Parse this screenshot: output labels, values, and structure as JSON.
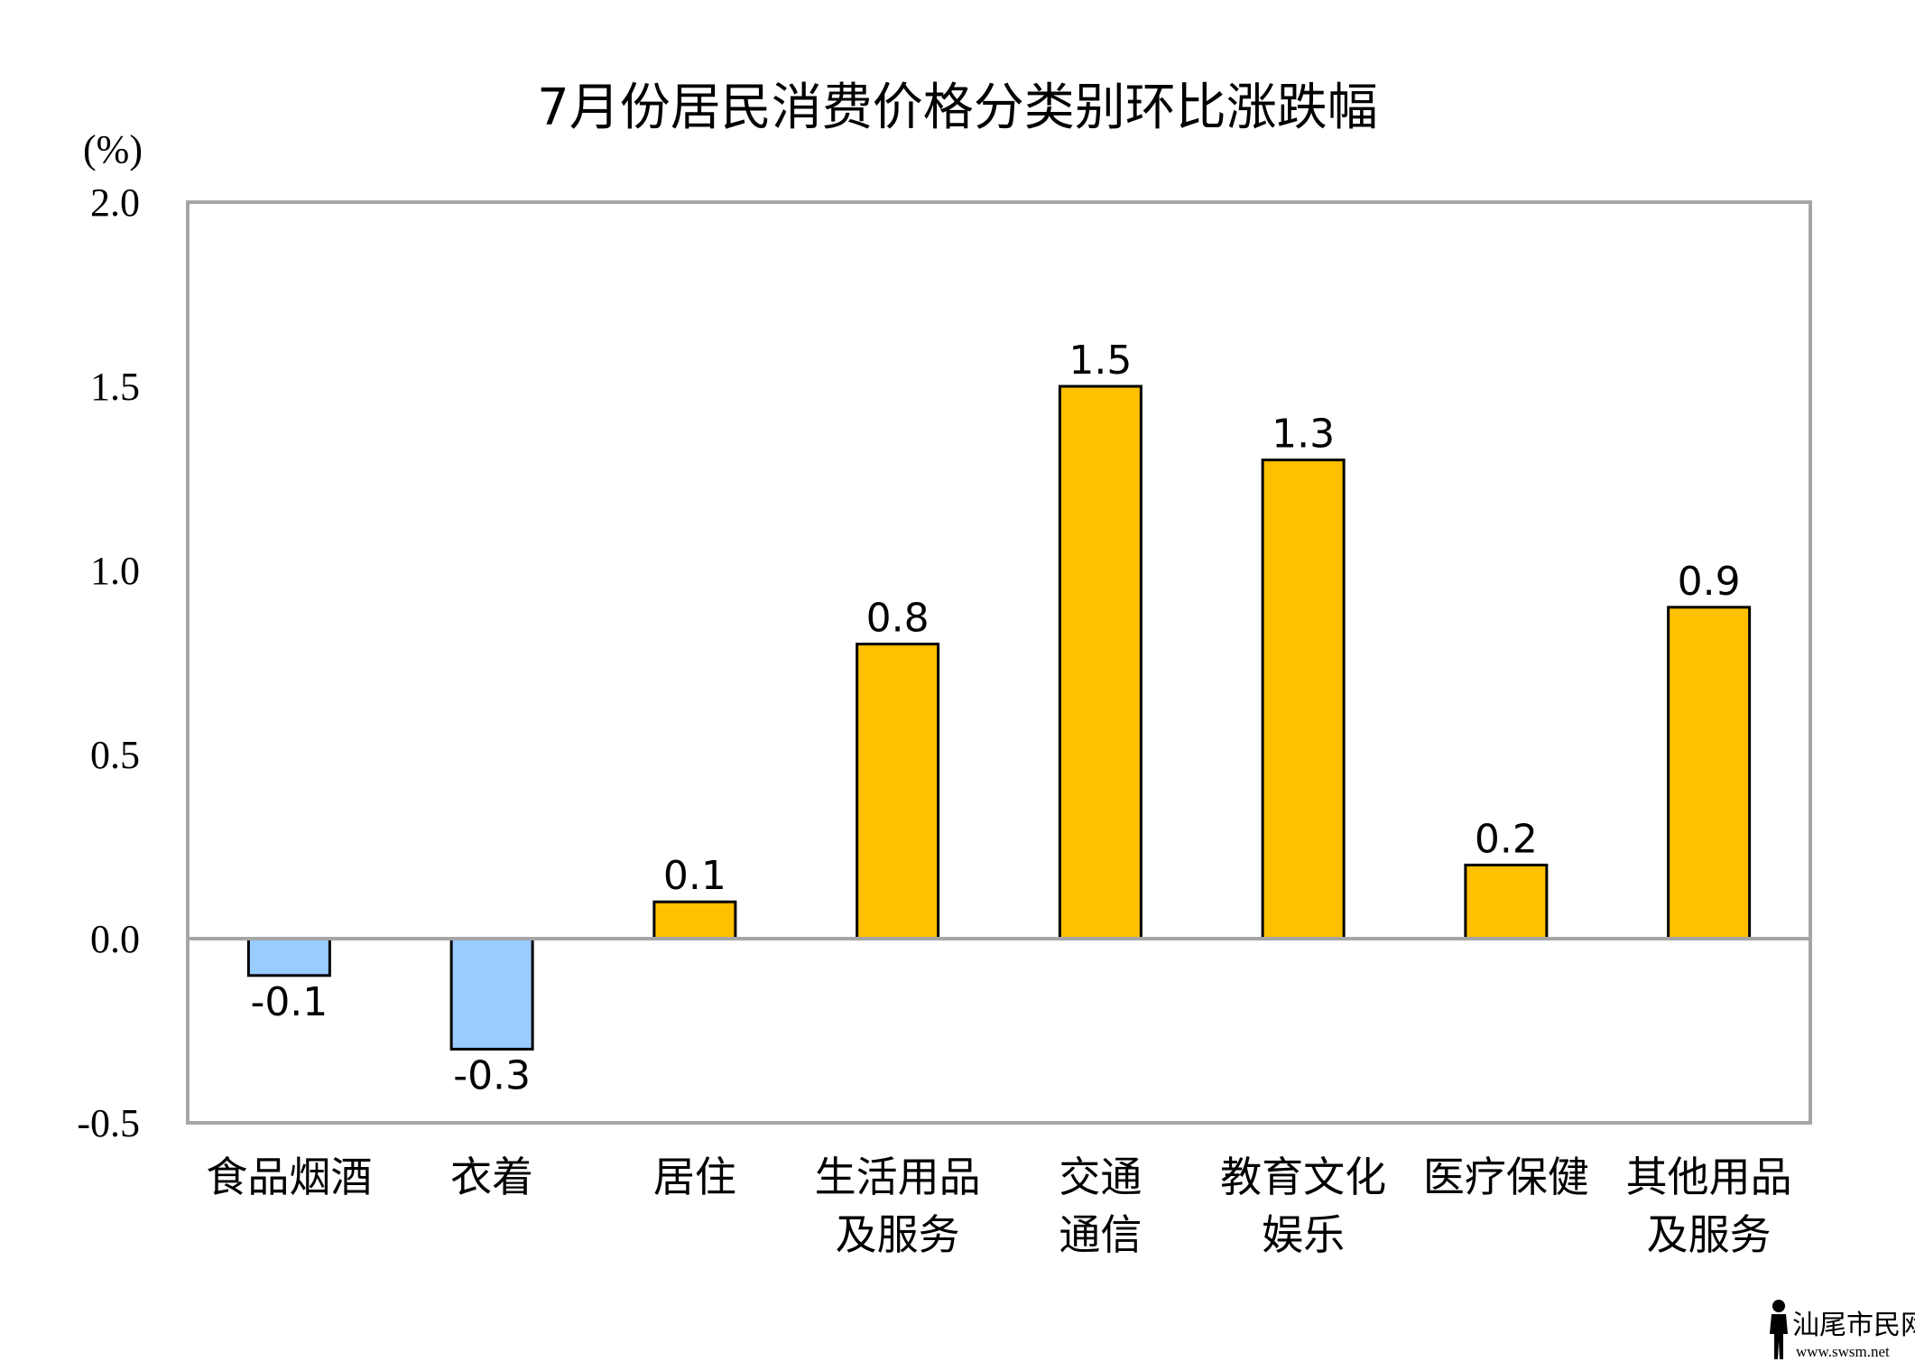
{
  "chart_data": {
    "type": "bar",
    "title": "7月份居民消费价格分类别环比涨跌幅",
    "ylabel": "(%)",
    "xlabel": "",
    "ylim": [
      -0.5,
      2.0
    ],
    "yticks": [
      "2.0",
      "1.5",
      "1.0",
      "0.5",
      "0.0",
      "-0.5"
    ],
    "ytick_values": [
      2.0,
      1.5,
      1.0,
      0.5,
      0.0,
      -0.5
    ],
    "categories": [
      [
        "食品烟酒"
      ],
      [
        "衣着"
      ],
      [
        "居住"
      ],
      [
        "生活用品",
        "及服务"
      ],
      [
        "交通",
        "通信"
      ],
      [
        "教育文化",
        "娱乐"
      ],
      [
        "医疗保健"
      ],
      [
        "其他用品",
        "及服务"
      ]
    ],
    "values": [
      -0.1,
      -0.3,
      0.1,
      0.8,
      1.5,
      1.3,
      0.2,
      0.9
    ],
    "value_labels": [
      "-0.1",
      "-0.3",
      "0.1",
      "0.8",
      "1.5",
      "1.3",
      "0.2",
      "0.9"
    ],
    "colors": {
      "positive": "#FFC000",
      "negative": "#99CCFF",
      "outline": "#000000",
      "frame": "#A6A6A6"
    },
    "grid": false,
    "legend": "none"
  },
  "watermark": {
    "text": "汕尾市民网",
    "url_text": "www.swsm.net"
  }
}
